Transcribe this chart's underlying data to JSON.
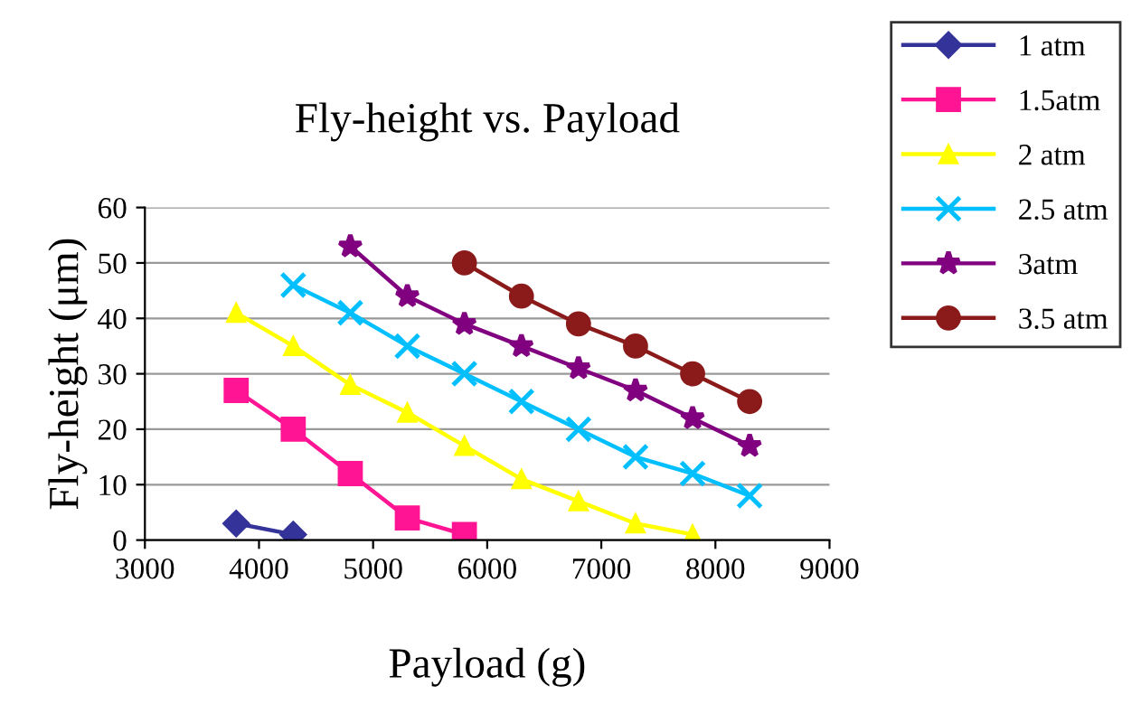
{
  "chart_data": {
    "type": "line",
    "title": "Fly-height vs. Payload",
    "xlabel": "Payload (g)",
    "ylabel": "Fly-height (μm)",
    "xlim": [
      3000,
      9000
    ],
    "xticks": [
      3000,
      4000,
      5000,
      6000,
      7000,
      8000,
      9000
    ],
    "ylim": [
      0,
      60
    ],
    "yticks": [
      0,
      10,
      20,
      30,
      40,
      50,
      60
    ],
    "grid": "y",
    "legend": "top right",
    "series": [
      {
        "name": "1 atm",
        "color": "#333399",
        "marker": "diamond",
        "x": [
          3800,
          4300
        ],
        "values": [
          3,
          1
        ]
      },
      {
        "name": "1.5atm",
        "color": "#ff1493",
        "marker": "square",
        "x": [
          3800,
          4300,
          4800,
          5300,
          5800
        ],
        "values": [
          27,
          20,
          12,
          4,
          1
        ]
      },
      {
        "name": "2 atm",
        "color": "#ffff00",
        "marker": "triangle",
        "x": [
          3800,
          4300,
          4800,
          5300,
          5800,
          6300,
          6800,
          7300,
          7800
        ],
        "values": [
          41,
          35,
          28,
          23,
          17,
          11,
          7,
          3,
          1
        ]
      },
      {
        "name": "2.5 atm",
        "color": "#00bfff",
        "marker": "cross",
        "x": [
          4300,
          4800,
          5300,
          5800,
          6300,
          6800,
          7300,
          7800,
          8300
        ],
        "values": [
          46,
          41,
          35,
          30,
          25,
          20,
          15,
          12,
          8
        ]
      },
      {
        "name": "3atm",
        "color": "#800080",
        "marker": "star",
        "x": [
          4800,
          5300,
          5800,
          6300,
          6800,
          7300,
          7800,
          8300
        ],
        "values": [
          53,
          44,
          39,
          35,
          31,
          27,
          22,
          17
        ]
      },
      {
        "name": "3.5 atm",
        "color": "#8b1a1a",
        "marker": "circle",
        "x": [
          5800,
          6300,
          6800,
          7300,
          7800,
          8300
        ],
        "values": [
          50,
          44,
          39,
          35,
          30,
          25
        ]
      }
    ]
  }
}
